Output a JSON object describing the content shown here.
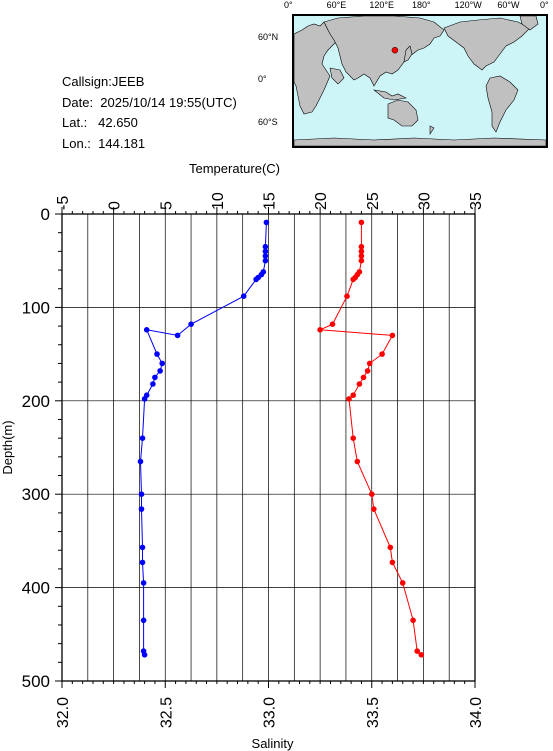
{
  "station": {
    "callsign_text": "Callsign:JEEB",
    "date_text": "Date:  2025/10/14 19:55(UTC)",
    "lat_text": "Lat.:   42.650",
    "lon_text": "Lon.:  144.181"
  },
  "map": {
    "top_labels": [
      "0°",
      "60°E",
      "120°E",
      "180°",
      "120°W",
      "60°W",
      "0°"
    ],
    "left_labels": [
      "60°N",
      "0°",
      "60°S"
    ],
    "land_color": "#c0c0c0",
    "ocean_color": "#cdf5f8",
    "marker_color": "#ff0000",
    "marker_lat": 42.65,
    "marker_lon": 144.181
  },
  "chart_data": {
    "type": "line",
    "ylabel": "Depth(m)",
    "ylim": [
      500,
      0
    ],
    "yticks": [
      0,
      100,
      200,
      300,
      400,
      500
    ],
    "temp_axis": {
      "label": "Temperature(C)",
      "lim": [
        -5,
        35
      ],
      "ticks": [
        -5,
        0,
        5,
        10,
        15,
        20,
        25,
        30,
        35
      ],
      "position": "top"
    },
    "sal_axis": {
      "label": "Salinity",
      "lim": [
        32.0,
        34.0
      ],
      "ticks": [
        "32.0",
        "32.5",
        "33.0",
        "33.5",
        "34.0"
      ],
      "position": "bottom"
    },
    "grid": true,
    "series": [
      {
        "variable": "temperature",
        "color": "#0000ff",
        "points": [
          [
            14.8,
            9
          ],
          [
            14.7,
            35
          ],
          [
            14.7,
            40
          ],
          [
            14.7,
            45
          ],
          [
            14.7,
            50
          ],
          [
            14.5,
            62
          ],
          [
            14.3,
            65
          ],
          [
            14.0,
            68
          ],
          [
            13.8,
            70
          ],
          [
            12.6,
            88
          ],
          [
            7.5,
            118
          ],
          [
            6.2,
            130
          ],
          [
            3.2,
            124
          ],
          [
            4.2,
            150
          ],
          [
            4.7,
            160
          ],
          [
            4.5,
            168
          ],
          [
            4.0,
            175
          ],
          [
            3.8,
            182
          ],
          [
            3.2,
            194
          ],
          [
            3.0,
            198
          ],
          [
            2.8,
            240
          ],
          [
            2.6,
            265
          ],
          [
            2.7,
            300
          ],
          [
            2.7,
            316
          ],
          [
            2.8,
            357
          ],
          [
            2.8,
            373
          ],
          [
            2.9,
            395
          ],
          [
            2.9,
            435
          ],
          [
            2.9,
            468
          ],
          [
            3.0,
            472
          ]
        ]
      },
      {
        "variable": "salinity",
        "color": "#ff0000",
        "points": [
          [
            33.45,
            9
          ],
          [
            33.45,
            35
          ],
          [
            33.45,
            40
          ],
          [
            33.45,
            45
          ],
          [
            33.45,
            50
          ],
          [
            33.44,
            62
          ],
          [
            33.43,
            65
          ],
          [
            33.42,
            68
          ],
          [
            33.41,
            70
          ],
          [
            33.38,
            88
          ],
          [
            33.31,
            118
          ],
          [
            33.25,
            124
          ],
          [
            33.6,
            130
          ],
          [
            33.55,
            150
          ],
          [
            33.49,
            160
          ],
          [
            33.48,
            168
          ],
          [
            33.46,
            175
          ],
          [
            33.44,
            182
          ],
          [
            33.41,
            194
          ],
          [
            33.39,
            198
          ],
          [
            33.41,
            240
          ],
          [
            33.43,
            265
          ],
          [
            33.5,
            300
          ],
          [
            33.51,
            316
          ],
          [
            33.59,
            357
          ],
          [
            33.6,
            373
          ],
          [
            33.65,
            395
          ],
          [
            33.7,
            435
          ],
          [
            33.72,
            468
          ],
          [
            33.74,
            472
          ]
        ]
      }
    ]
  }
}
